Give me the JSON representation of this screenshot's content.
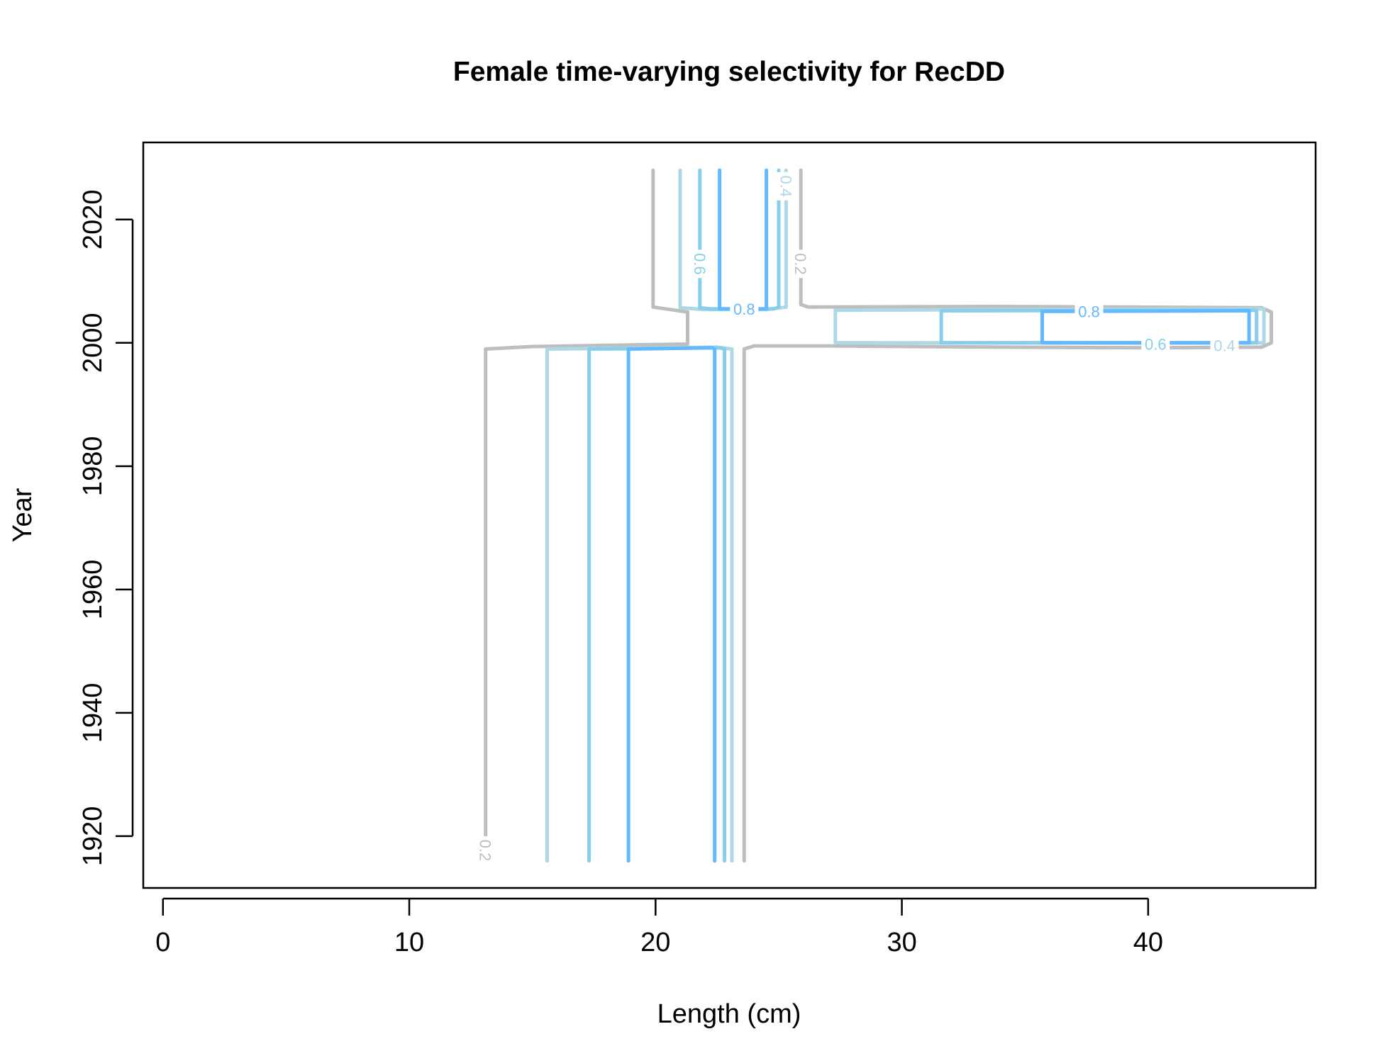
{
  "chart_data": {
    "type": "contour",
    "title": "Female time-varying selectivity for RecDD",
    "xlabel": "Length (cm)",
    "ylabel": "Year",
    "xlim": [
      -0.8,
      46.8
    ],
    "ylim": [
      1911.6,
      2032.5
    ],
    "x_ticks": [
      0,
      10,
      20,
      30,
      40
    ],
    "y_ticks": [
      1920,
      1940,
      1960,
      1980,
      2000,
      2020
    ],
    "grid": false,
    "levels": [
      {
        "level": "0.2",
        "color": "#bebebe"
      },
      {
        "level": "0.4",
        "color": "#add8e6"
      },
      {
        "level": "0.6",
        "color": "#87ceeb"
      },
      {
        "level": "0.8",
        "color": "#63b8ff"
      }
    ],
    "contours": [
      {
        "level": "0.2",
        "points": [
          [
            13.1,
            1916
          ],
          [
            13.1,
            1999
          ],
          [
            15,
            1999.4
          ],
          [
            21.3,
            1999.8
          ],
          [
            21.3,
            2005
          ],
          [
            19.9,
            2005.8
          ],
          [
            19.9,
            2028
          ]
        ]
      },
      {
        "level": "0.2",
        "points": [
          [
            23.6,
            1916
          ],
          [
            23.6,
            1999
          ],
          [
            24,
            1999.5
          ],
          [
            27,
            1999.5
          ],
          [
            34,
            1999.3
          ],
          [
            40,
            1999.2
          ],
          [
            44.6,
            1999.3
          ],
          [
            45,
            2000
          ],
          [
            45,
            2005
          ],
          [
            44.6,
            2005.7
          ],
          [
            34,
            2005.9
          ],
          [
            26.2,
            2005.8
          ],
          [
            25.9,
            2006.2
          ],
          [
            25.9,
            2028
          ]
        ]
      },
      {
        "level": "0.4",
        "points": [
          [
            15.6,
            1916
          ],
          [
            15.6,
            1999
          ],
          [
            22.5,
            1999.3
          ],
          [
            23.1,
            1999
          ]
        ]
      },
      {
        "level": "0.4",
        "points": [
          [
            23.1,
            1916
          ],
          [
            23.1,
            1999
          ]
        ]
      },
      {
        "level": "0.4",
        "points": [
          [
            21,
            2028
          ],
          [
            21,
            2005.7
          ],
          [
            22,
            2005.4
          ],
          [
            24.5,
            2005.4
          ],
          [
            25.3,
            2005.8
          ],
          [
            25.3,
            2028
          ]
        ]
      },
      {
        "level": "0.4",
        "points": [
          [
            27.3,
            2000
          ],
          [
            27.3,
            2005.3
          ],
          [
            44.7,
            2005.5
          ],
          [
            44.7,
            2000
          ],
          [
            27.3,
            2000
          ]
        ]
      },
      {
        "level": "0.6",
        "points": [
          [
            17.3,
            1916
          ],
          [
            17.3,
            1999
          ],
          [
            22.6,
            1999.2
          ],
          [
            22.8,
            1999
          ]
        ]
      },
      {
        "level": "0.6",
        "points": [
          [
            22.8,
            1916
          ],
          [
            22.8,
            1999
          ]
        ]
      },
      {
        "level": "0.6",
        "points": [
          [
            21.8,
            2028
          ],
          [
            21.8,
            2005.7
          ],
          [
            22.2,
            2005.5
          ],
          [
            24.8,
            2005.5
          ],
          [
            25,
            2005.8
          ],
          [
            25,
            2028
          ]
        ]
      },
      {
        "level": "0.6",
        "points": [
          [
            31.6,
            2000
          ],
          [
            31.6,
            2005.2
          ],
          [
            44.4,
            2005.3
          ],
          [
            44.4,
            2000
          ],
          [
            31.6,
            2000
          ]
        ]
      },
      {
        "level": "0.8",
        "points": [
          [
            18.9,
            1916
          ],
          [
            18.9,
            1999
          ],
          [
            22.3,
            1999.2
          ],
          [
            22.4,
            1999
          ],
          [
            22.4,
            1916
          ]
        ]
      },
      {
        "level": "0.8",
        "points": [
          [
            22.6,
            2028
          ],
          [
            22.6,
            2005.5
          ],
          [
            24.5,
            2005.5
          ],
          [
            24.5,
            2028
          ]
        ]
      },
      {
        "level": "0.8",
        "points": [
          [
            35.7,
            2000
          ],
          [
            35.7,
            2005.1
          ],
          [
            44.1,
            2005.2
          ],
          [
            44.1,
            2000
          ],
          [
            35.7,
            2000
          ]
        ]
      }
    ],
    "contour_labels": [
      {
        "text": "0.2",
        "x": 13.1,
        "y": 1917.7,
        "level": "0.2",
        "rotate": 90
      },
      {
        "text": "0.2",
        "x": 25.9,
        "y": 2012.8,
        "level": "0.2",
        "rotate": 90
      },
      {
        "text": "0.4",
        "x": 25.3,
        "y": 2025.4,
        "level": "0.4",
        "rotate": 90
      },
      {
        "text": "0.6",
        "x": 21.8,
        "y": 2012.8,
        "level": "0.6",
        "rotate": 90
      },
      {
        "text": "0.8",
        "x": 23.6,
        "y": 2005.5,
        "level": "0.8",
        "rotate": 0
      },
      {
        "text": "0.8",
        "x": 37.6,
        "y": 2005.1,
        "level": "0.8",
        "rotate": 0
      },
      {
        "text": "0.6",
        "x": 40.3,
        "y": 1999.8,
        "level": "0.6",
        "rotate": 0
      },
      {
        "text": "0.4",
        "x": 43.1,
        "y": 1999.6,
        "level": "0.4",
        "rotate": 0
      }
    ]
  }
}
